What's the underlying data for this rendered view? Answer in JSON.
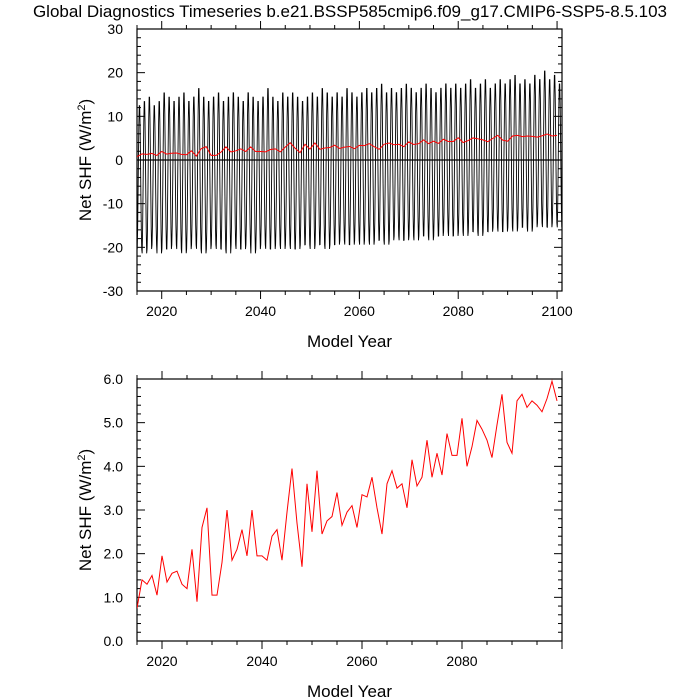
{
  "title": "Global Diagnostics Timeseries b.e21.BSSP585cmip6.f09_g17.CMIP6-SSP5-8.5.103",
  "chart_data": [
    {
      "type": "line",
      "xlabel": "Model Year",
      "ylabel_main": "Net SHF (W/m",
      "ylabel_sup": "2",
      "ylabel_close": ")",
      "xlim": [
        2015,
        2101
      ],
      "ylim": [
        -30,
        30
      ],
      "xticks": [
        2020,
        2040,
        2060,
        2080,
        2100
      ],
      "yticks": [
        -30,
        -20,
        -10,
        0,
        10,
        20,
        30
      ],
      "ytick_decimals": 0,
      "zero_line": true,
      "series": [
        {
          "color": "#000000",
          "monthly": true,
          "note": "monthly global mean net surface heat flux",
          "annual_max": [
            13,
            14,
            15,
            13,
            14,
            16,
            15,
            14,
            15,
            16,
            14,
            15,
            17,
            15,
            14,
            15,
            16,
            14,
            15,
            16,
            15,
            14,
            16,
            15,
            14,
            15,
            17,
            15,
            14,
            16,
            15,
            16,
            15,
            14,
            15,
            16,
            15,
            17,
            16,
            15,
            16,
            15,
            17,
            16,
            15,
            16,
            17,
            16,
            17,
            18,
            16,
            17,
            16,
            17,
            18,
            17,
            16,
            17,
            18,
            17,
            16,
            17,
            18,
            17,
            18,
            17,
            18,
            19,
            17,
            18,
            19,
            17,
            18,
            19,
            18,
            19,
            20,
            18,
            19,
            18,
            20,
            19,
            21,
            19,
            20,
            18
          ],
          "annual_min": [
            -21,
            -22,
            -21,
            -20,
            -22,
            -21,
            -21,
            -20,
            -21,
            -22,
            -21,
            -20,
            -21,
            -22,
            -21,
            -20,
            -21,
            -21,
            -22,
            -20,
            -21,
            -21,
            -20,
            -22,
            -21,
            -20,
            -21,
            -21,
            -20,
            -21,
            -20,
            -21,
            -21,
            -20,
            -20,
            -21,
            -20,
            -20,
            -21,
            -20,
            -20,
            -19,
            -20,
            -20,
            -19,
            -20,
            -19,
            -20,
            -19,
            -19,
            -20,
            -19,
            -18,
            -19,
            -19,
            -18,
            -19,
            -18,
            -18,
            -19,
            -18,
            -18,
            -17,
            -18,
            -18,
            -17,
            -18,
            -17,
            -17,
            -18,
            -17,
            -17,
            -16,
            -17,
            -17,
            -16,
            -17,
            -16,
            -16,
            -17,
            -16,
            -15,
            -16,
            -16,
            -15,
            -16
          ]
        },
        {
          "color": "#ff0000",
          "monthly": false,
          "note": "annual mean (same values as lower panel)",
          "x": [
            2015,
            2016,
            2017,
            2018,
            2019,
            2020,
            2021,
            2022,
            2023,
            2024,
            2025,
            2026,
            2027,
            2028,
            2029,
            2030,
            2031,
            2032,
            2033,
            2034,
            2035,
            2036,
            2037,
            2038,
            2039,
            2040,
            2041,
            2042,
            2043,
            2044,
            2045,
            2046,
            2047,
            2048,
            2049,
            2050,
            2051,
            2052,
            2053,
            2054,
            2055,
            2056,
            2057,
            2058,
            2059,
            2060,
            2061,
            2062,
            2063,
            2064,
            2065,
            2066,
            2067,
            2068,
            2069,
            2070,
            2071,
            2072,
            2073,
            2074,
            2075,
            2076,
            2077,
            2078,
            2079,
            2080,
            2081,
            2082,
            2083,
            2084,
            2085,
            2086,
            2087,
            2088,
            2089,
            2090,
            2091,
            2092,
            2093,
            2094,
            2095,
            2096,
            2097,
            2098,
            2099,
            2100
          ],
          "y": [
            0.75,
            1.4,
            1.3,
            1.5,
            1.05,
            1.95,
            1.35,
            1.55,
            1.6,
            1.3,
            1.2,
            2.1,
            0.9,
            2.6,
            3.05,
            1.05,
            1.05,
            1.8,
            3.0,
            1.85,
            2.1,
            2.55,
            1.95,
            3.0,
            1.95,
            1.95,
            1.85,
            2.4,
            2.55,
            1.85,
            2.95,
            3.95,
            2.7,
            1.7,
            3.6,
            2.5,
            3.9,
            2.45,
            2.75,
            2.85,
            3.4,
            2.65,
            2.95,
            3.1,
            2.6,
            3.35,
            3.3,
            3.75,
            3.05,
            2.45,
            3.6,
            3.9,
            3.5,
            3.6,
            3.05,
            4.15,
            3.55,
            3.75,
            4.6,
            3.75,
            4.3,
            3.8,
            4.75,
            4.25,
            4.25,
            5.1,
            4.0,
            4.45,
            5.05,
            4.85,
            4.6,
            4.2,
            4.95,
            5.65,
            4.55,
            4.3,
            5.5,
            5.65,
            5.35,
            5.5,
            5.4,
            5.25,
            5.55,
            5.95,
            5.5,
            5.65
          ]
        }
      ]
    },
    {
      "type": "line",
      "xlabel": "Model Year",
      "ylabel_main": "Net SHF (W/m",
      "ylabel_sup": "2",
      "ylabel_close": ")",
      "xlim": [
        2015,
        2100
      ],
      "ylim": [
        0,
        6
      ],
      "xticks": [
        2020,
        2040,
        2060,
        2080
      ],
      "yticks": [
        0,
        1,
        2,
        3,
        4,
        5,
        6
      ],
      "ytick_decimals": 1,
      "zero_line": false,
      "series": [
        {
          "color": "#ff0000",
          "monthly": false,
          "x": [
            2015,
            2016,
            2017,
            2018,
            2019,
            2020,
            2021,
            2022,
            2023,
            2024,
            2025,
            2026,
            2027,
            2028,
            2029,
            2030,
            2031,
            2032,
            2033,
            2034,
            2035,
            2036,
            2037,
            2038,
            2039,
            2040,
            2041,
            2042,
            2043,
            2044,
            2045,
            2046,
            2047,
            2048,
            2049,
            2050,
            2051,
            2052,
            2053,
            2054,
            2055,
            2056,
            2057,
            2058,
            2059,
            2060,
            2061,
            2062,
            2063,
            2064,
            2065,
            2066,
            2067,
            2068,
            2069,
            2070,
            2071,
            2072,
            2073,
            2074,
            2075,
            2076,
            2077,
            2078,
            2079,
            2080,
            2081,
            2082,
            2083,
            2084,
            2085,
            2086,
            2087,
            2088,
            2089,
            2090,
            2091,
            2092,
            2093,
            2094,
            2095,
            2096,
            2097,
            2098,
            2099
          ],
          "y": [
            0.75,
            1.4,
            1.3,
            1.5,
            1.05,
            1.95,
            1.35,
            1.55,
            1.6,
            1.3,
            1.2,
            2.1,
            0.9,
            2.6,
            3.05,
            1.05,
            1.05,
            1.8,
            3.0,
            1.85,
            2.1,
            2.55,
            1.95,
            3.0,
            1.95,
            1.95,
            1.85,
            2.4,
            2.55,
            1.85,
            2.95,
            3.95,
            2.7,
            1.7,
            3.6,
            2.5,
            3.9,
            2.45,
            2.75,
            2.85,
            3.4,
            2.65,
            2.95,
            3.1,
            2.6,
            3.35,
            3.3,
            3.75,
            3.05,
            2.45,
            3.6,
            3.9,
            3.5,
            3.6,
            3.05,
            4.15,
            3.55,
            3.75,
            4.6,
            3.75,
            4.3,
            3.8,
            4.75,
            4.25,
            4.25,
            5.1,
            4.0,
            4.45,
            5.05,
            4.85,
            4.6,
            4.2,
            4.95,
            5.65,
            4.55,
            4.3,
            5.5,
            5.65,
            5.35,
            5.5,
            5.4,
            5.25,
            5.55,
            5.95,
            5.5
          ]
        }
      ]
    }
  ]
}
